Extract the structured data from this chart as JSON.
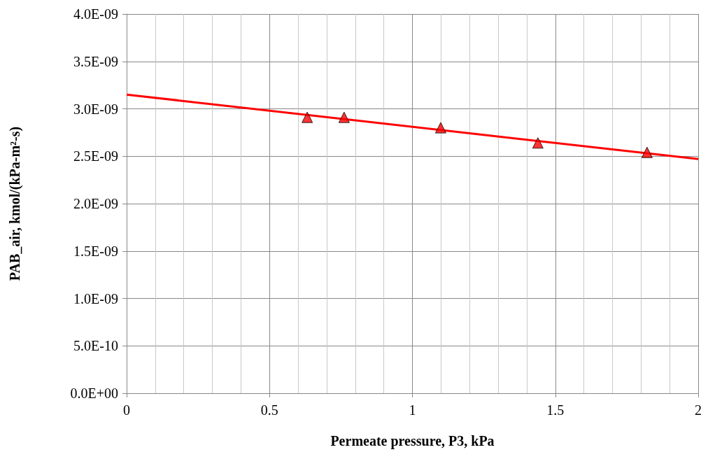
{
  "chart_data": {
    "type": "scatter",
    "xlabel": "Permeate pressure, P3, kPa",
    "ylabel": "PAB_air, kmol/(kPa-m²-s)",
    "series": [
      {
        "color": "#ff0000",
        "marker": "triangle",
        "x": [
          0.632,
          0.761,
          1.099,
          1.439,
          1.821
        ],
        "values": [
          2.91e-09,
          2.91e-09,
          2.8e-09,
          2.64e-09,
          2.54e-09
        ]
      },
      {
        "type": "line",
        "color": "#ff0000",
        "marker": "none",
        "x": [
          0,
          2
        ],
        "values": [
          3.15e-09,
          2.47e-09
        ]
      }
    ],
    "xlim": [
      0,
      2
    ],
    "xticks": [
      0,
      0.5,
      1,
      1.5,
      2
    ],
    "ylim": [
      0,
      4e-09
    ],
    "yticks": [
      {
        "value": 0,
        "label": "0.0E+00"
      },
      {
        "value": 5e-10,
        "label": "5.0E-10"
      },
      {
        "value": 1e-09,
        "label": "1.0E-09"
      },
      {
        "value": 1.5e-09,
        "label": "1.5E-09"
      },
      {
        "value": 2e-09,
        "label": "2.0E-09"
      },
      {
        "value": 2.5e-09,
        "label": "2.5E-09"
      },
      {
        "value": 3e-09,
        "label": "3.0E-09"
      },
      {
        "value": 3.5e-09,
        "label": "3.5E-09"
      },
      {
        "value": 4e-09,
        "label": "4.0E-09"
      }
    ],
    "grid": true,
    "legend": false
  }
}
